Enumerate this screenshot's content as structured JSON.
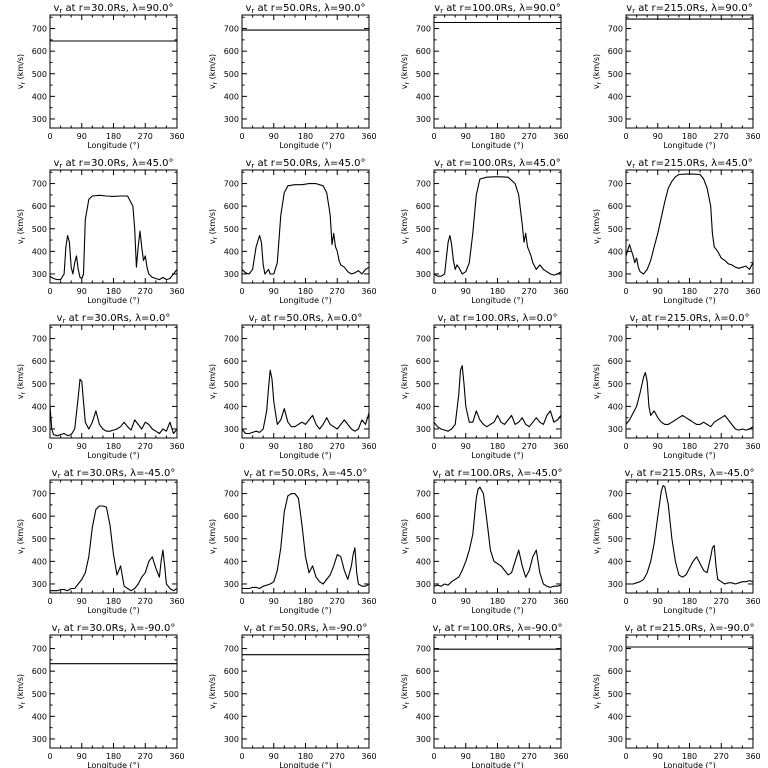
{
  "figure": {
    "xlabel": "Longitude (°)",
    "ylabel": "v",
    "ylabel_sub": "r",
    "ylabel_unit": " (km/s)",
    "xticks": [
      0,
      90,
      180,
      270,
      360
    ],
    "yticks": [
      300,
      400,
      500,
      600,
      700
    ],
    "xlim": [
      0,
      360
    ],
    "ylim": [
      260,
      760
    ],
    "line_color": "#000000"
  },
  "chart_data": [
    {
      "type": "line",
      "row": 0,
      "col": 0,
      "title": "v_r at r=30.0Rs, λ=90.0°",
      "xlim": [
        0,
        360
      ],
      "ylim": [
        260,
        760
      ],
      "x": [
        0,
        360
      ],
      "y": [
        645,
        645
      ]
    },
    {
      "type": "line",
      "row": 0,
      "col": 1,
      "title": "v_r at r=50.0Rs, λ=90.0°",
      "xlim": [
        0,
        360
      ],
      "ylim": [
        260,
        760
      ],
      "x": [
        0,
        360
      ],
      "y": [
        693,
        693
      ]
    },
    {
      "type": "line",
      "row": 0,
      "col": 2,
      "title": "v_r at r=100.0Rs, λ=90.0°",
      "xlim": [
        0,
        360
      ],
      "ylim": [
        260,
        760
      ],
      "x": [
        0,
        360
      ],
      "y": [
        727,
        727
      ]
    },
    {
      "type": "line",
      "row": 0,
      "col": 3,
      "title": "v_r at r=215.0Rs, λ=90.0°",
      "xlim": [
        0,
        360
      ],
      "ylim": [
        260,
        760
      ],
      "x": [
        0,
        360
      ],
      "y": [
        742,
        742
      ]
    },
    {
      "type": "line",
      "row": 1,
      "col": 0,
      "title": "v_r at r=30.0Rs, λ=45.0°",
      "xlim": [
        0,
        360
      ],
      "ylim": [
        260,
        760
      ],
      "x": [
        0,
        10,
        20,
        30,
        40,
        45,
        50,
        55,
        60,
        65,
        70,
        75,
        80,
        85,
        90,
        95,
        100,
        110,
        120,
        140,
        160,
        180,
        200,
        220,
        235,
        240,
        245,
        250,
        255,
        260,
        265,
        270,
        275,
        280,
        290,
        300,
        310,
        320,
        330,
        340,
        350,
        360
      ],
      "y": [
        290,
        280,
        275,
        275,
        300,
        420,
        470,
        440,
        330,
        300,
        350,
        380,
        320,
        285,
        280,
        300,
        540,
        630,
        645,
        648,
        645,
        643,
        645,
        645,
        600,
        500,
        330,
        420,
        490,
        420,
        360,
        380,
        330,
        300,
        285,
        280,
        275,
        285,
        275,
        280,
        300,
        320
      ]
    },
    {
      "type": "line",
      "row": 1,
      "col": 1,
      "title": "v_r at r=50.0Rs, λ=45.0°",
      "xlim": [
        0,
        360
      ],
      "ylim": [
        260,
        760
      ],
      "x": [
        0,
        10,
        20,
        30,
        40,
        50,
        55,
        60,
        65,
        70,
        75,
        80,
        90,
        100,
        110,
        120,
        130,
        150,
        170,
        190,
        210,
        230,
        240,
        250,
        255,
        260,
        265,
        270,
        275,
        280,
        290,
        300,
        310,
        320,
        330,
        340,
        350,
        360
      ],
      "y": [
        320,
        305,
        300,
        320,
        420,
        470,
        440,
        340,
        300,
        310,
        320,
        300,
        300,
        350,
        560,
        660,
        690,
        695,
        695,
        700,
        700,
        690,
        660,
        560,
        430,
        480,
        420,
        400,
        360,
        340,
        330,
        310,
        300,
        305,
        315,
        300,
        320,
        330
      ]
    },
    {
      "type": "line",
      "row": 1,
      "col": 2,
      "title": "v_r at r=100.0Rs, λ=45.0°",
      "xlim": [
        0,
        360
      ],
      "ylim": [
        260,
        760
      ],
      "x": [
        0,
        10,
        20,
        30,
        40,
        45,
        50,
        55,
        60,
        65,
        70,
        80,
        90,
        100,
        110,
        120,
        130,
        150,
        170,
        190,
        210,
        230,
        240,
        250,
        255,
        260,
        265,
        270,
        275,
        280,
        290,
        300,
        310,
        320,
        330,
        340,
        350,
        360
      ],
      "y": [
        300,
        290,
        290,
        300,
        440,
        470,
        430,
        360,
        320,
        340,
        330,
        300,
        310,
        350,
        480,
        650,
        720,
        728,
        730,
        730,
        728,
        700,
        650,
        520,
        440,
        480,
        420,
        400,
        380,
        350,
        320,
        340,
        320,
        310,
        300,
        295,
        300,
        310
      ]
    },
    {
      "type": "line",
      "row": 1,
      "col": 3,
      "title": "v_r at r=215.0Rs, λ=45.0°",
      "xlim": [
        0,
        360
      ],
      "ylim": [
        260,
        760
      ],
      "x": [
        0,
        10,
        20,
        25,
        30,
        35,
        40,
        50,
        60,
        70,
        80,
        90,
        100,
        110,
        120,
        130,
        140,
        150,
        170,
        190,
        210,
        220,
        230,
        240,
        245,
        250,
        260,
        270,
        280,
        290,
        300,
        310,
        320,
        330,
        340,
        350,
        360
      ],
      "y": [
        380,
        430,
        380,
        350,
        370,
        330,
        310,
        300,
        320,
        360,
        420,
        480,
        550,
        620,
        680,
        710,
        730,
        740,
        742,
        742,
        740,
        720,
        680,
        600,
        480,
        420,
        400,
        370,
        360,
        345,
        340,
        330,
        325,
        330,
        335,
        320,
        350
      ]
    },
    {
      "type": "line",
      "row": 2,
      "col": 0,
      "title": "v_r at r=30.0Rs, λ=0.0°",
      "xlim": [
        0,
        360
      ],
      "ylim": [
        260,
        760
      ],
      "x": [
        0,
        5,
        10,
        20,
        30,
        40,
        50,
        60,
        70,
        80,
        85,
        90,
        95,
        100,
        110,
        120,
        130,
        140,
        150,
        160,
        170,
        180,
        190,
        200,
        210,
        220,
        230,
        240,
        250,
        260,
        270,
        280,
        290,
        300,
        310,
        320,
        330,
        340,
        350,
        360
      ],
      "y": [
        400,
        300,
        275,
        270,
        275,
        280,
        270,
        275,
        300,
        440,
        520,
        510,
        420,
        330,
        300,
        330,
        380,
        320,
        300,
        290,
        290,
        295,
        300,
        310,
        330,
        310,
        295,
        340,
        320,
        300,
        330,
        320,
        300,
        290,
        280,
        300,
        290,
        330,
        280,
        300
      ]
    },
    {
      "type": "line",
      "row": 2,
      "col": 1,
      "title": "v_r at r=50.0Rs, λ=0.0°",
      "xlim": [
        0,
        360
      ],
      "ylim": [
        260,
        760
      ],
      "x": [
        0,
        10,
        20,
        30,
        40,
        50,
        60,
        70,
        75,
        80,
        85,
        90,
        100,
        110,
        120,
        130,
        140,
        150,
        160,
        170,
        180,
        190,
        200,
        210,
        220,
        230,
        240,
        250,
        260,
        270,
        280,
        290,
        300,
        310,
        320,
        330,
        340,
        350,
        360
      ],
      "y": [
        300,
        280,
        280,
        285,
        290,
        285,
        300,
        380,
        480,
        560,
        520,
        420,
        320,
        340,
        390,
        330,
        310,
        310,
        320,
        330,
        320,
        340,
        360,
        320,
        300,
        320,
        350,
        320,
        310,
        300,
        320,
        340,
        320,
        300,
        290,
        300,
        340,
        320,
        370
      ]
    },
    {
      "type": "line",
      "row": 2,
      "col": 2,
      "title": "v_r at r=100.0Rs, λ=0.0°",
      "xlim": [
        0,
        360
      ],
      "ylim": [
        260,
        760
      ],
      "x": [
        0,
        10,
        20,
        30,
        40,
        50,
        60,
        70,
        75,
        80,
        85,
        90,
        100,
        110,
        120,
        130,
        140,
        150,
        160,
        170,
        180,
        190,
        200,
        210,
        220,
        230,
        240,
        250,
        260,
        270,
        280,
        290,
        300,
        310,
        320,
        330,
        340,
        350,
        360
      ],
      "y": [
        330,
        310,
        300,
        295,
        290,
        300,
        320,
        450,
        560,
        580,
        500,
        400,
        330,
        330,
        380,
        340,
        320,
        310,
        320,
        330,
        360,
        330,
        320,
        340,
        360,
        320,
        330,
        350,
        320,
        310,
        330,
        350,
        330,
        320,
        360,
        380,
        330,
        340,
        360
      ]
    },
    {
      "type": "line",
      "row": 2,
      "col": 3,
      "title": "v_r at r=215.0Rs, λ=0.0°",
      "xlim": [
        0,
        360
      ],
      "ylim": [
        260,
        760
      ],
      "x": [
        0,
        10,
        20,
        30,
        40,
        50,
        55,
        60,
        65,
        70,
        80,
        90,
        100,
        110,
        120,
        130,
        140,
        150,
        160,
        170,
        180,
        190,
        200,
        210,
        220,
        230,
        240,
        250,
        260,
        270,
        280,
        290,
        300,
        310,
        320,
        330,
        340,
        350,
        360
      ],
      "y": [
        320,
        340,
        370,
        400,
        460,
        530,
        550,
        510,
        400,
        360,
        380,
        350,
        330,
        320,
        320,
        330,
        340,
        350,
        360,
        350,
        340,
        330,
        320,
        320,
        330,
        320,
        310,
        330,
        340,
        350,
        360,
        340,
        320,
        300,
        295,
        300,
        295,
        300,
        310
      ]
    },
    {
      "type": "line",
      "row": 3,
      "col": 0,
      "title": "v_r at r=30.0Rs, λ=-45.0°",
      "xlim": [
        0,
        360
      ],
      "ylim": [
        260,
        760
      ],
      "x": [
        0,
        10,
        20,
        30,
        40,
        50,
        60,
        70,
        80,
        90,
        100,
        110,
        120,
        130,
        140,
        150,
        160,
        170,
        180,
        190,
        200,
        210,
        220,
        230,
        240,
        250,
        260,
        270,
        280,
        290,
        300,
        310,
        315,
        320,
        325,
        330,
        335,
        340,
        350,
        360
      ],
      "y": [
        270,
        270,
        270,
        275,
        275,
        270,
        280,
        280,
        300,
        320,
        350,
        420,
        550,
        630,
        645,
        645,
        640,
        560,
        430,
        340,
        380,
        290,
        280,
        270,
        280,
        300,
        330,
        350,
        400,
        420,
        370,
        330,
        400,
        450,
        380,
        300,
        290,
        280,
        270,
        280
      ]
    },
    {
      "type": "line",
      "row": 3,
      "col": 1,
      "title": "v_r at r=50.0Rs, λ=-45.0°",
      "xlim": [
        0,
        360
      ],
      "ylim": [
        260,
        760
      ],
      "x": [
        0,
        10,
        20,
        30,
        40,
        50,
        60,
        70,
        80,
        90,
        100,
        110,
        120,
        130,
        140,
        150,
        160,
        170,
        180,
        190,
        200,
        210,
        220,
        230,
        240,
        250,
        260,
        270,
        280,
        290,
        300,
        310,
        315,
        320,
        325,
        330,
        340,
        350,
        360
      ],
      "y": [
        280,
        280,
        280,
        285,
        285,
        280,
        290,
        295,
        300,
        310,
        360,
        460,
        620,
        690,
        700,
        700,
        680,
        560,
        420,
        350,
        380,
        330,
        310,
        300,
        320,
        340,
        380,
        430,
        420,
        360,
        320,
        380,
        430,
        460,
        350,
        300,
        290,
        290,
        300
      ]
    },
    {
      "type": "line",
      "row": 3,
      "col": 2,
      "title": "v_r at r=100.0Rs, λ=-45.0°",
      "xlim": [
        0,
        360
      ],
      "ylim": [
        260,
        760
      ],
      "x": [
        0,
        10,
        20,
        30,
        40,
        50,
        60,
        70,
        80,
        90,
        100,
        110,
        120,
        125,
        130,
        140,
        150,
        160,
        170,
        180,
        190,
        200,
        210,
        220,
        230,
        240,
        250,
        260,
        270,
        280,
        290,
        300,
        310,
        320,
        330,
        340,
        350,
        360
      ],
      "y": [
        290,
        295,
        290,
        300,
        295,
        310,
        320,
        330,
        360,
        400,
        450,
        520,
        680,
        720,
        728,
        700,
        580,
        450,
        400,
        390,
        380,
        360,
        340,
        350,
        400,
        450,
        380,
        330,
        360,
        420,
        450,
        350,
        300,
        290,
        285,
        290,
        290,
        295
      ]
    },
    {
      "type": "line",
      "row": 3,
      "col": 3,
      "title": "v_r at r=215.0Rs, λ=-45.0°",
      "xlim": [
        0,
        360
      ],
      "ylim": [
        260,
        760
      ],
      "x": [
        0,
        10,
        20,
        30,
        40,
        50,
        60,
        70,
        80,
        90,
        100,
        105,
        110,
        120,
        130,
        140,
        150,
        160,
        170,
        180,
        190,
        200,
        210,
        220,
        230,
        240,
        245,
        250,
        255,
        260,
        270,
        280,
        290,
        300,
        310,
        320,
        330,
        340,
        350,
        360
      ],
      "y": [
        300,
        300,
        300,
        305,
        310,
        320,
        350,
        400,
        480,
        600,
        710,
        735,
        730,
        650,
        500,
        400,
        340,
        330,
        340,
        370,
        400,
        420,
        390,
        360,
        350,
        420,
        460,
        470,
        380,
        320,
        310,
        300,
        305,
        305,
        300,
        305,
        310,
        310,
        315,
        310
      ]
    },
    {
      "type": "line",
      "row": 4,
      "col": 0,
      "title": "v_r at r=30.0Rs, λ=-90.0°",
      "xlim": [
        0,
        360
      ],
      "ylim": [
        260,
        760
      ],
      "x": [
        0,
        360
      ],
      "y": [
        633,
        633
      ]
    },
    {
      "type": "line",
      "row": 4,
      "col": 1,
      "title": "v_r at r=50.0Rs, λ=-90.0°",
      "xlim": [
        0,
        360
      ],
      "ylim": [
        260,
        760
      ],
      "x": [
        0,
        360
      ],
      "y": [
        673,
        673
      ]
    },
    {
      "type": "line",
      "row": 4,
      "col": 2,
      "title": "v_r at r=100.0Rs, λ=-90.0°",
      "xlim": [
        0,
        360
      ],
      "ylim": [
        260,
        760
      ],
      "x": [
        0,
        360
      ],
      "y": [
        697,
        697
      ]
    },
    {
      "type": "line",
      "row": 4,
      "col": 3,
      "title": "v_r at r=215.0Rs, λ=-90.0°",
      "xlim": [
        0,
        360
      ],
      "ylim": [
        260,
        760
      ],
      "x": [
        0,
        360
      ],
      "y": [
        707,
        707
      ]
    }
  ]
}
